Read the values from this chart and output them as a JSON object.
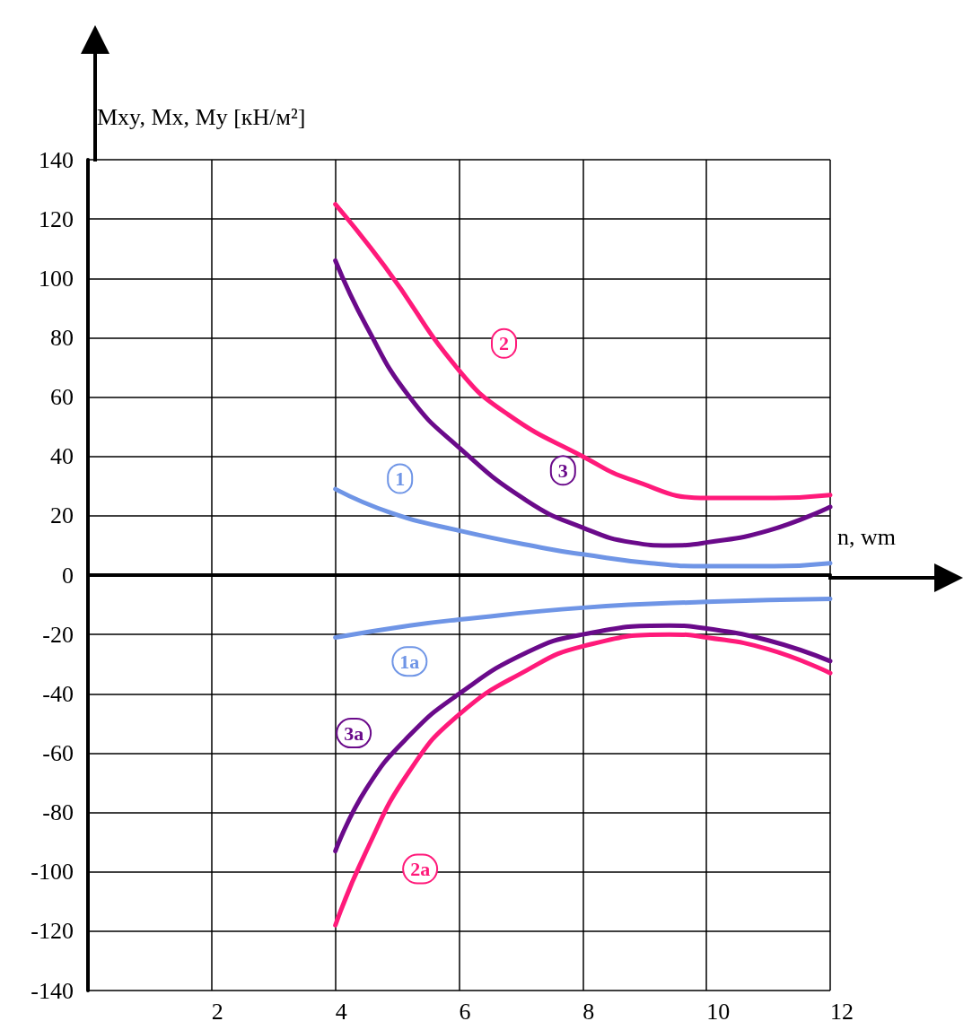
{
  "chart_data": {
    "type": "line",
    "xlabel": "n, wm",
    "ylabel": "Mxy, Mx, My [кН/м²]",
    "xlim": [
      0,
      12
    ],
    "xticks": [
      2,
      4,
      6,
      8,
      10,
      12
    ],
    "ylim": [
      -140,
      140
    ],
    "yticks": [
      -140,
      -120,
      -100,
      -80,
      -60,
      -40,
      -20,
      0,
      20,
      40,
      60,
      80,
      100,
      120,
      140
    ],
    "grid": true,
    "legend": false,
    "marker": "none",
    "line_style": "solid",
    "series": [
      {
        "name": "1",
        "color": "#6f95e6",
        "x": [
          4,
          4.9,
          6,
          7.4,
          8,
          9.1,
          10,
          11.1,
          12
        ],
        "values": [
          29,
          21,
          15,
          9,
          7,
          4,
          3,
          3,
          4
        ]
      },
      {
        "name": "2",
        "color": "#ff1a7a",
        "x": [
          4,
          4.8,
          6,
          6.8,
          8,
          8.8,
          10,
          11.1,
          12
        ],
        "values": [
          125,
          104,
          69,
          54,
          40,
          32,
          26,
          26,
          27
        ]
      },
      {
        "name": "3",
        "color": "#6a0a8a",
        "x": [
          4,
          4.5,
          5.2,
          6,
          7.1,
          8,
          8.8,
          9.4,
          10,
          11,
          12
        ],
        "values": [
          106,
          84,
          60,
          43,
          25,
          16,
          11,
          10,
          11,
          15,
          23
        ]
      },
      {
        "name": "1a",
        "color": "#6f95e6",
        "x": [
          4,
          5.2,
          6,
          8,
          10,
          12
        ],
        "values": [
          -21,
          -17,
          -15,
          -11,
          -9,
          -8
        ]
      },
      {
        "name": "2a",
        "color": "#ff1a7a",
        "x": [
          4,
          4.5,
          5.2,
          6,
          7.1,
          8,
          9.4,
          10,
          11,
          12
        ],
        "values": [
          -118,
          -93,
          -66,
          -47,
          -32,
          -24,
          -20,
          -21,
          -25,
          -33
        ]
      },
      {
        "name": "3a",
        "color": "#6a0a8a",
        "x": [
          4,
          4.5,
          5.2,
          6,
          7.1,
          8,
          9.4,
          10,
          11,
          12
        ],
        "values": [
          -93,
          -72,
          -54,
          -40,
          -26,
          -20,
          -17,
          -18,
          -22,
          -29
        ]
      }
    ]
  }
}
